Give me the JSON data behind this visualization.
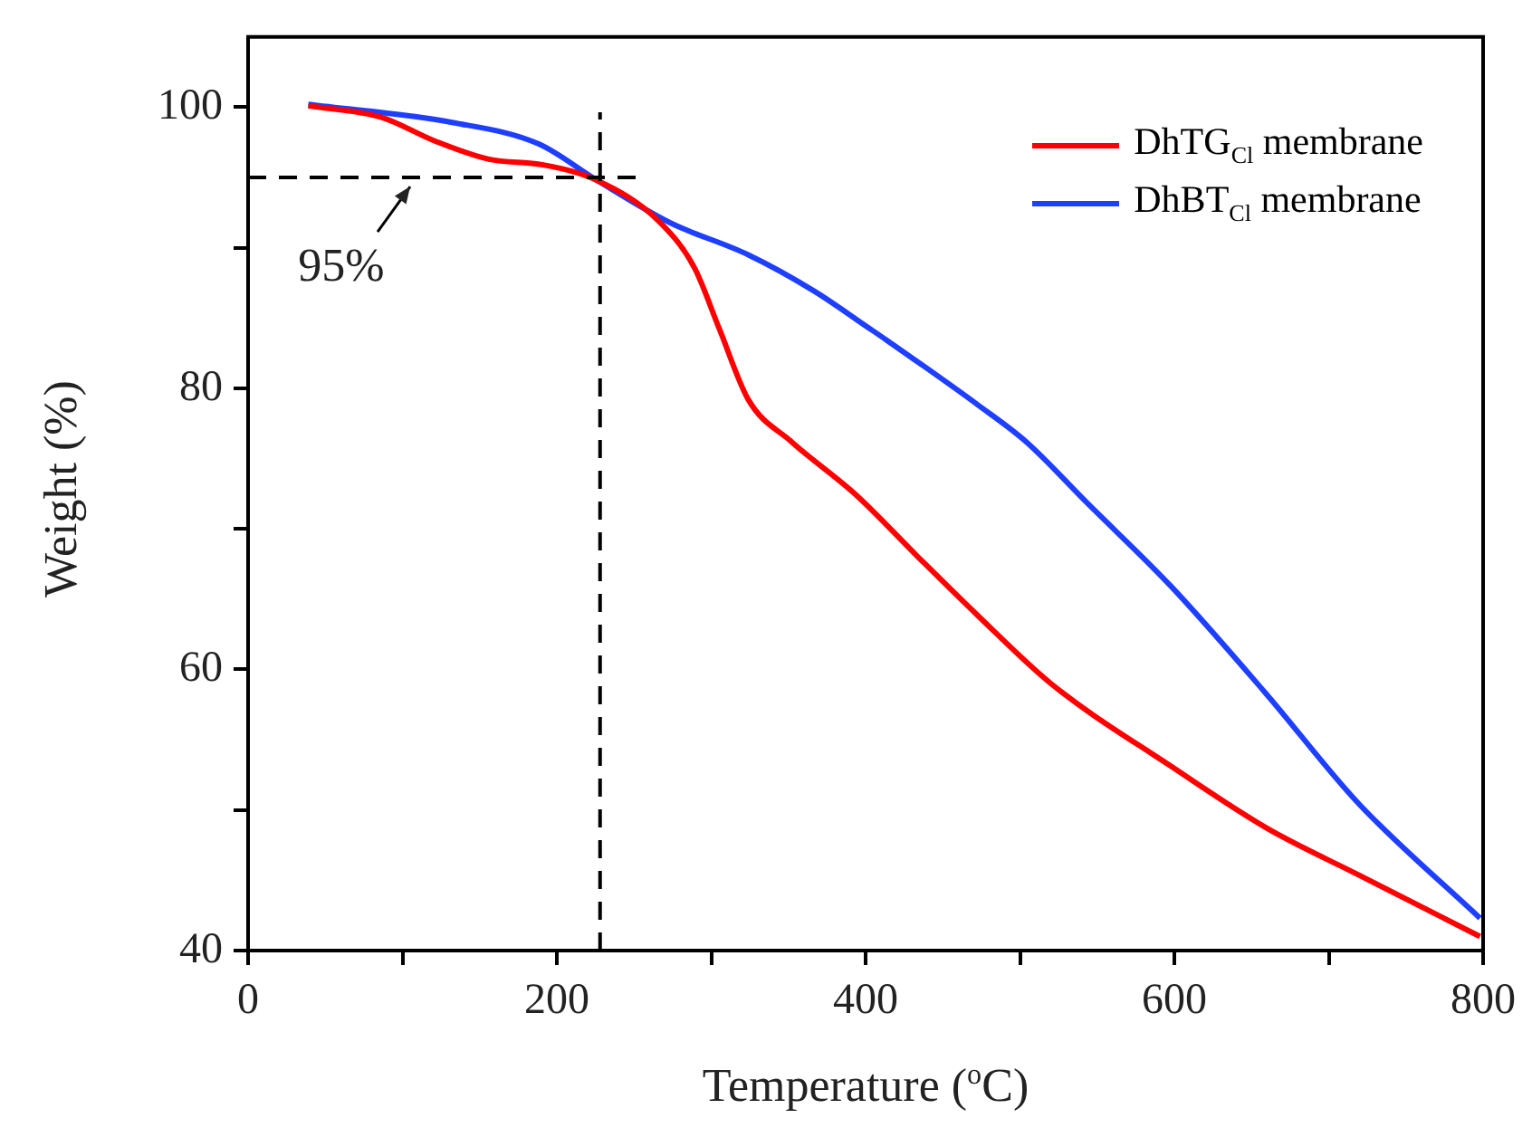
{
  "chart_data": {
    "type": "line",
    "xlabel": "Temperature ($^{o}$C)",
    "ylabel": "Weight (%)",
    "xlim": [
      0,
      800
    ],
    "xticks": [
      0,
      {
        "value": 100,
        "label": null
      },
      200,
      {
        "value": 300,
        "label": null
      },
      400,
      {
        "value": 500,
        "label": null
      },
      600,
      {
        "value": 700,
        "label": null
      },
      800
    ],
    "ylim": [
      40,
      105
    ],
    "yticks": [
      40,
      {
        "value": 50,
        "label": null
      },
      60,
      {
        "value": 70,
        "label": null
      },
      80,
      {
        "value": 90,
        "label": null
      },
      100
    ],
    "grid": false,
    "legend": "top right",
    "marker": "none",
    "line_style": "solid",
    "series": [
      {
        "name": "DhTG$_{Cl}$ membrane",
        "color": "#ff0000",
        "x": [
          39,
          86,
          121,
          156,
          191,
          226,
          265,
          289,
          305,
          324,
          352,
          394,
          434,
          473,
          520,
          598,
          660,
          719,
          798
        ],
        "values": [
          100.1,
          99.3,
          97.6,
          96.3,
          95.9,
          94.8,
          92.0,
          88.6,
          84.3,
          79.2,
          76.2,
          72.4,
          68.0,
          63.8,
          59.0,
          53.1,
          48.7,
          45.4,
          41.0
        ]
      },
      {
        "name": "DhBT$_{Cl}$ membrane",
        "color": "#1f3fff",
        "x": [
          39,
          133,
          188,
          226,
          273,
          324,
          367,
          402,
          414,
          473,
          504,
          543,
          598,
          660,
          719,
          798
        ],
        "values": [
          100.2,
          98.9,
          97.4,
          94.8,
          91.8,
          89.5,
          86.9,
          84.3,
          83.4,
          78.8,
          76.2,
          71.9,
          65.9,
          58.2,
          50.5,
          42.3
        ]
      }
    ],
    "ref_lines": [
      {
        "axis": "y",
        "value": 95,
        "color": "#000000",
        "line_style": "dashed"
      },
      {
        "axis": "x",
        "value": 228,
        "color": "#000000",
        "line_style": "dashed"
      }
    ],
    "annotations": [
      {
        "text": "95%",
        "x": 105,
        "y": 95
      }
    ]
  }
}
